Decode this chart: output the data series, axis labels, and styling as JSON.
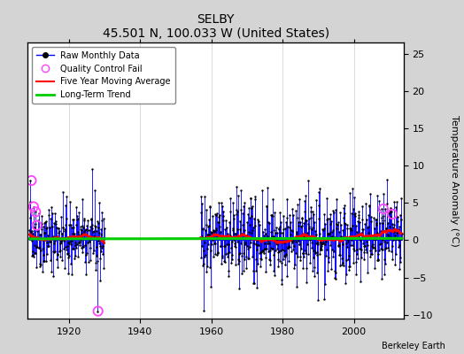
{
  "title": "SELBY",
  "subtitle": "45.501 N, 100.033 W (United States)",
  "ylabel": "Temperature Anomaly (°C)",
  "credit": "Berkeley Earth",
  "background_color": "#d4d4d4",
  "plot_bg_color": "#ffffff",
  "grid_color": "#cccccc",
  "xlim": [
    1908.5,
    2014
  ],
  "ylim": [
    -10.5,
    26.5
  ],
  "yticks": [
    -10,
    -5,
    0,
    5,
    10,
    15,
    20,
    25
  ],
  "xticks": [
    1920,
    1940,
    1960,
    1980,
    2000
  ],
  "raw_color": "#0000ff",
  "raw_marker_color": "#000000",
  "ma_color": "#ff0000",
  "trend_color": "#00cc00",
  "qc_color": "#ff44ff",
  "early_start": 1909.0,
  "early_end": 1930.0,
  "main_start": 1957.0,
  "main_end": 2013.5,
  "seed": 42,
  "qc_early_years": [
    1909.5,
    1910.1,
    1910.7,
    1911.0,
    1928.2
  ],
  "qc_early_vals": [
    8.0,
    4.5,
    3.8,
    2.0,
    -9.5
  ],
  "qc_main_years": [
    2008.3,
    2010.8
  ],
  "qc_main_vals": [
    4.2,
    3.5
  ],
  "trend_x": [
    1909.0,
    2013.5
  ],
  "trend_y": [
    0.18,
    0.25
  ]
}
